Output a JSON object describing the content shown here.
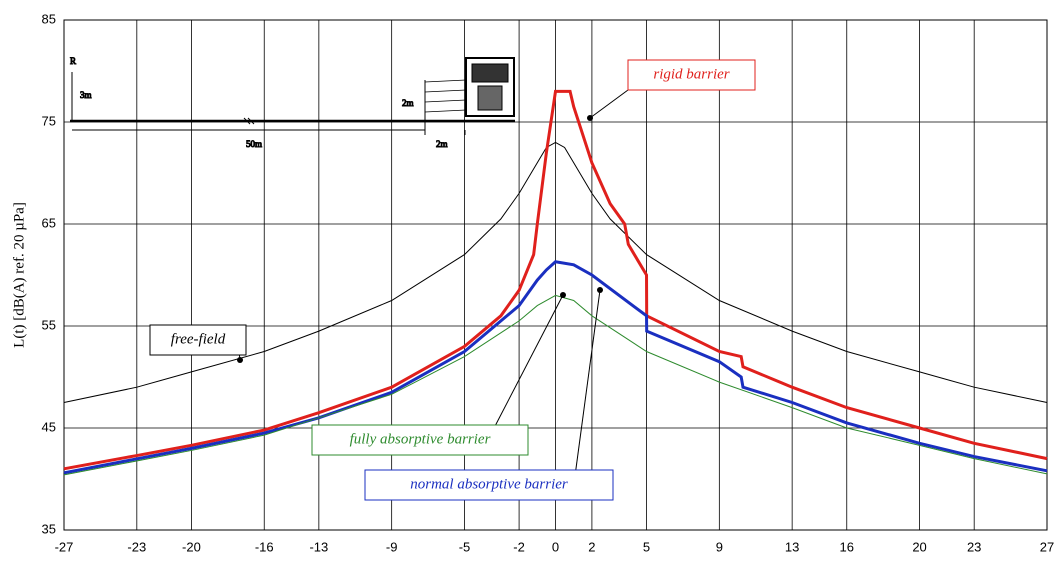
{
  "chart_data": {
    "type": "line",
    "ylabel": "L(t) [dB(A) ref. 20 µPa]",
    "xlim": [
      -27,
      27
    ],
    "ylim": [
      35,
      85
    ],
    "xticks": [
      -27,
      -23,
      -20,
      -16,
      -13,
      -9,
      -5,
      -2,
      0,
      2,
      5,
      9,
      13,
      16,
      20,
      23,
      27
    ],
    "yticks": [
      35,
      45,
      55,
      65,
      75,
      85
    ],
    "grid": true,
    "diagram_labels": [
      "R",
      "3m",
      "2m",
      "50m",
      "2m"
    ],
    "series": [
      {
        "name": "free-field",
        "color": "#000000",
        "x": [
          -27,
          -23,
          -20,
          -16,
          -13,
          -9,
          -5,
          -3,
          -2,
          -1,
          -0.5,
          0,
          0.5,
          1,
          2,
          3,
          5,
          9,
          13,
          16,
          20,
          23,
          27
        ],
        "values": [
          47.5,
          49,
          50.5,
          52.5,
          54.5,
          57.5,
          62,
          65.5,
          68,
          71,
          72.5,
          73,
          72.5,
          71,
          68,
          65.5,
          62,
          57.5,
          54.5,
          52.5,
          50.5,
          49,
          47.5
        ]
      },
      {
        "name": "rigid barrier",
        "color": "#e0201c",
        "x": [
          -27,
          -23,
          -20,
          -16,
          -13,
          -9,
          -5,
          -3,
          -2,
          -1.2,
          -1,
          -0.5,
          0,
          0.8,
          1,
          2,
          3,
          3.8,
          4,
          5,
          5.01,
          9,
          10.2,
          10.3,
          13,
          16,
          20,
          23,
          27
        ],
        "values": [
          41,
          42.3,
          43.3,
          44.8,
          46.5,
          49,
          53,
          56,
          58.5,
          62,
          65,
          72,
          78,
          78,
          76.5,
          71,
          67,
          65,
          63,
          60,
          56,
          52.5,
          52,
          51,
          49,
          47,
          45,
          43.5,
          42
        ]
      },
      {
        "name": "normal absorptive barrier",
        "color": "#1a2fc0",
        "x": [
          -27,
          -20,
          -16,
          -13,
          -9,
          -5,
          -2,
          -1,
          -0.5,
          0,
          1,
          2,
          5,
          5.01,
          9,
          10.2,
          10.3,
          13,
          16,
          20,
          23,
          27
        ],
        "values": [
          40.6,
          43,
          44.5,
          46,
          48.5,
          52.5,
          57,
          59.5,
          60.5,
          61.3,
          61,
          60,
          56,
          54.5,
          51.5,
          50,
          49,
          47.5,
          45.5,
          43.5,
          42.2,
          40.8
        ]
      },
      {
        "name": "fully absorptive barrier",
        "color": "#2e8b2e",
        "x": [
          -27,
          -20,
          -16,
          -13,
          -9,
          -5,
          -2,
          -1,
          0,
          1,
          2,
          5,
          9,
          13,
          16,
          20,
          23,
          27
        ],
        "values": [
          40.4,
          42.8,
          44.3,
          46,
          48.3,
          52,
          55.5,
          57,
          58,
          57.5,
          56,
          52.5,
          49.5,
          47,
          45,
          43.3,
          42,
          40.5
        ]
      }
    ]
  }
}
